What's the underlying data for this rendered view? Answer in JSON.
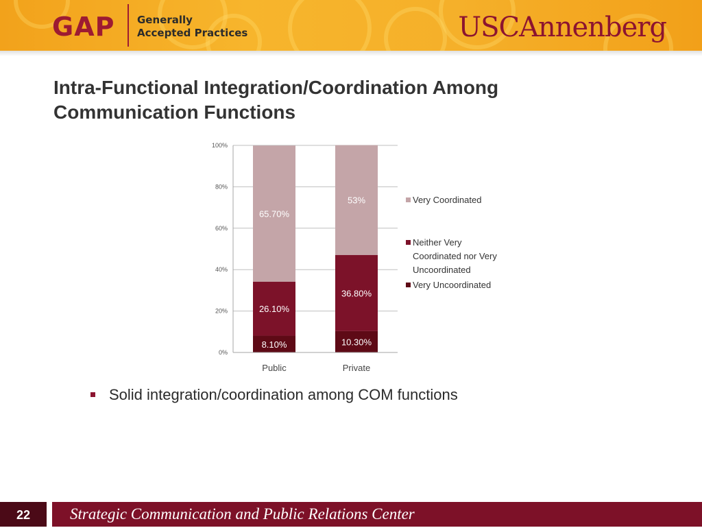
{
  "header": {
    "gap_logo_text": "GAP",
    "gap_sub_line1": "Generally",
    "gap_sub_line2": "Accepted Practices",
    "usc_logo_prefix": "USC",
    "usc_logo_suffix": "Annenberg"
  },
  "slide": {
    "title_line1": "Intra-Functional Integration/Coordination Among",
    "title_line2": "Communication Functions",
    "bullet": "Solid integration/coordination among COM functions"
  },
  "footer": {
    "page_number": "22",
    "text": "Strategic Communication and Public Relations Center"
  },
  "colors": {
    "very_coordinated": "#c4a5a8",
    "neither": "#7c1229",
    "very_uncoordinated": "#5e0a16",
    "brand_red": "#8c1430"
  },
  "chart_data": {
    "type": "bar",
    "stacked": true,
    "categories": [
      "Public",
      "Private"
    ],
    "series": [
      {
        "name": "Very Uncoordinated",
        "values": [
          8.1,
          10.3
        ],
        "labels": [
          "8.10%",
          "10.30%"
        ],
        "color": "#5e0a16"
      },
      {
        "name": "Neither Very Coordinated nor Very Uncoordinated",
        "values": [
          26.1,
          36.8
        ],
        "labels": [
          "26.10%",
          "36.80%"
        ],
        "color": "#7c1229"
      },
      {
        "name": "Very Coordinated",
        "values": [
          65.7,
          53
        ],
        "labels": [
          "65.70%",
          "53%"
        ],
        "color": "#c4a5a8"
      }
    ],
    "legend_order": [
      "Very Coordinated",
      "Neither Very Coordinated nor Very Uncoordinated",
      "Very Uncoordinated"
    ],
    "legend_lines": [
      [
        "Very Coordinated"
      ],
      [
        "Neither Very",
        "Coordinated nor Very",
        "Uncoordinated"
      ],
      [
        "Very Uncoordinated"
      ]
    ],
    "yticks": [
      "0%",
      "20%",
      "40%",
      "60%",
      "80%",
      "100%"
    ],
    "ylim": [
      0,
      100
    ],
    "grid": true,
    "legend_position": "right"
  }
}
